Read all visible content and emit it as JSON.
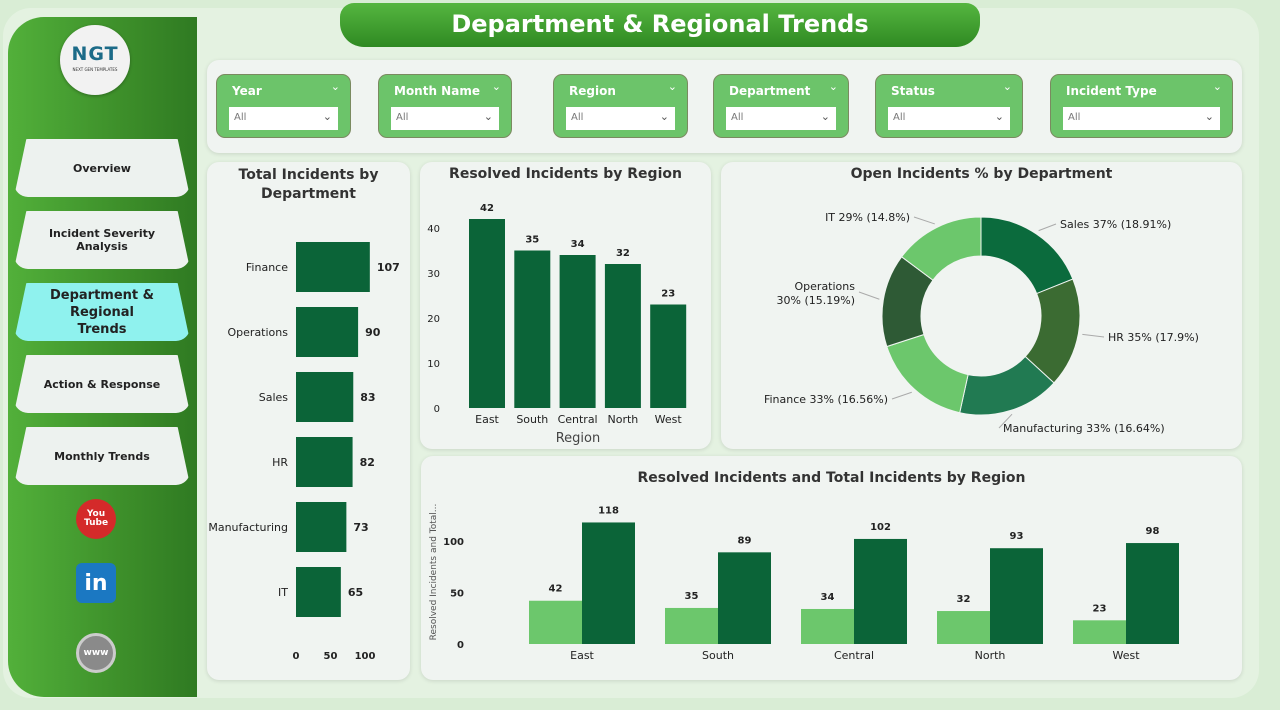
{
  "title": "Department & Regional Trends",
  "logo": {
    "text": "NGT",
    "subtitle": "NEXT GEN TEMPLATES"
  },
  "nav": [
    {
      "label": "Overview"
    },
    {
      "label": "Incident Severity Analysis"
    },
    {
      "label": "Department & Regional Trends",
      "active": true
    },
    {
      "label": "Action & Response"
    },
    {
      "label": "Monthly Trends"
    }
  ],
  "social": [
    {
      "icon": "youtube-icon",
      "label": "You Tube"
    },
    {
      "icon": "linkedin-icon",
      "label": "in"
    },
    {
      "icon": "globe-icon",
      "label": "www"
    }
  ],
  "filters": [
    {
      "label": "Year",
      "value": "All"
    },
    {
      "label": "Month Name",
      "value": "All"
    },
    {
      "label": "Region",
      "value": "All"
    },
    {
      "label": "Department",
      "value": "All"
    },
    {
      "label": "Status",
      "value": "All"
    },
    {
      "label": "Incident Type",
      "value": "All"
    }
  ],
  "colors": {
    "dark": "#0b6438",
    "light": "#6cc76c",
    "accent": "#3f9a2c"
  },
  "chart_data": [
    {
      "type": "bar",
      "orientation": "horizontal",
      "title": "Total Incidents by Department",
      "categories": [
        "Finance",
        "Operations",
        "Sales",
        "HR",
        "Manufacturing",
        "IT"
      ],
      "values": [
        107,
        90,
        83,
        82,
        73,
        65
      ],
      "xticks": [
        "0",
        "50",
        "100"
      ],
      "xlim": [
        0,
        110
      ]
    },
    {
      "type": "bar",
      "title": "Resolved Incidents by Region",
      "xlabel": "Region",
      "categories": [
        "East",
        "South",
        "Central",
        "North",
        "West"
      ],
      "values": [
        42,
        35,
        34,
        32,
        23
      ],
      "yticks": [
        "0",
        "10",
        "20",
        "30",
        "40"
      ],
      "ylim": [
        0,
        42
      ]
    },
    {
      "type": "pie",
      "donut": true,
      "title": "Open Incidents % by Department",
      "slices": [
        {
          "label": "Sales 37% (18.91%)",
          "value": 18.91,
          "color": "#0b6b3d"
        },
        {
          "label": "HR 35% (17.9%)",
          "value": 17.9,
          "color": "#3b6b32"
        },
        {
          "label": "Manufacturing 33% (16.64%)",
          "value": 16.64,
          "color": "#217a52"
        },
        {
          "label": "Finance 33% (16.56%)",
          "value": 16.56,
          "color": "#6cc76c"
        },
        {
          "label": "Operations 30% (15.19%)",
          "value": 15.19,
          "color": "#2e5a35"
        },
        {
          "label": "IT 29% (14.8%)",
          "value": 14.8,
          "color": "#6cc76c"
        }
      ]
    },
    {
      "type": "bar",
      "grouped": true,
      "title": "Resolved Incidents and Total Incidents by Region",
      "ylabel": "Resolved Incidents and Total...",
      "categories": [
        "East",
        "South",
        "Central",
        "North",
        "West"
      ],
      "series": [
        {
          "values": [
            42,
            35,
            34,
            32,
            23
          ],
          "color": "#6cc76c"
        },
        {
          "values": [
            118,
            89,
            102,
            93,
            98
          ],
          "color": "#0b6438"
        }
      ],
      "yticks": [
        "0",
        "50",
        "100"
      ],
      "ylim": [
        0,
        118
      ]
    }
  ]
}
